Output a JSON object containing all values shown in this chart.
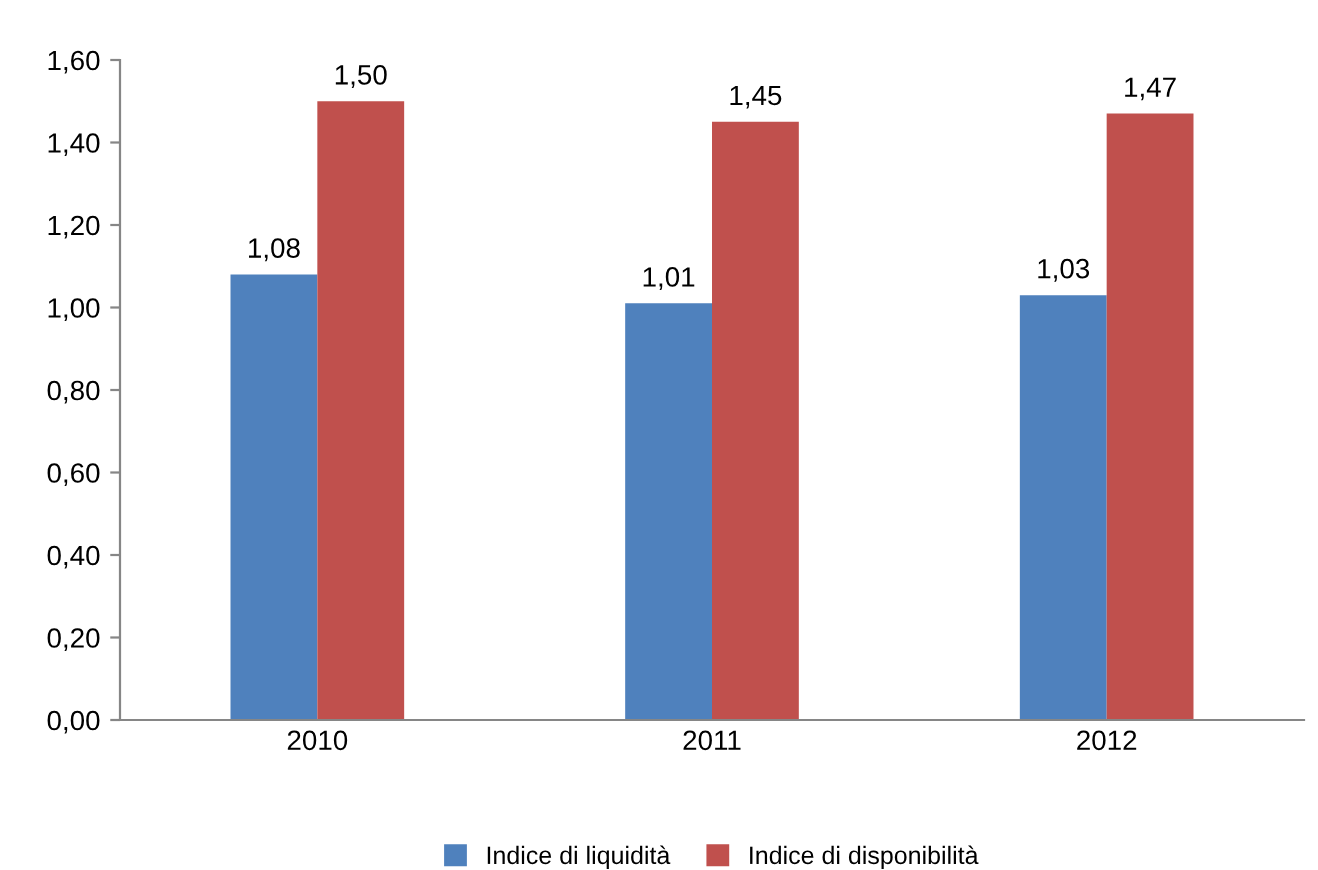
{
  "chart_data": {
    "type": "bar",
    "categories": [
      "2010",
      "2011",
      "2012"
    ],
    "series": [
      {
        "name": "Indice di liquidità",
        "color": "#4f81bd",
        "values": [
          1.08,
          1.01,
          1.03
        ],
        "value_labels": [
          "1,08",
          "1,01",
          "1,03"
        ]
      },
      {
        "name": "Indice di disponibilità",
        "color": "#c0504d",
        "values": [
          1.5,
          1.45,
          1.47
        ],
        "value_labels": [
          "1,50",
          "1,45",
          "1,47"
        ]
      }
    ],
    "ylim": [
      0,
      1.6
    ],
    "yticks": [
      {
        "value": 0,
        "label": "0,00"
      },
      {
        "value": 0.2,
        "label": "0,20"
      },
      {
        "value": 0.4,
        "label": "0,40"
      },
      {
        "value": 0.6,
        "label": "0,60"
      },
      {
        "value": 0.8,
        "label": "0,80"
      },
      {
        "value": 1.0,
        "label": "1,00"
      },
      {
        "value": 1.2,
        "label": "1,20"
      },
      {
        "value": 1.4,
        "label": "1,40"
      },
      {
        "value": 1.6,
        "label": "1,60"
      }
    ],
    "grid": false,
    "legend": "bottom"
  }
}
